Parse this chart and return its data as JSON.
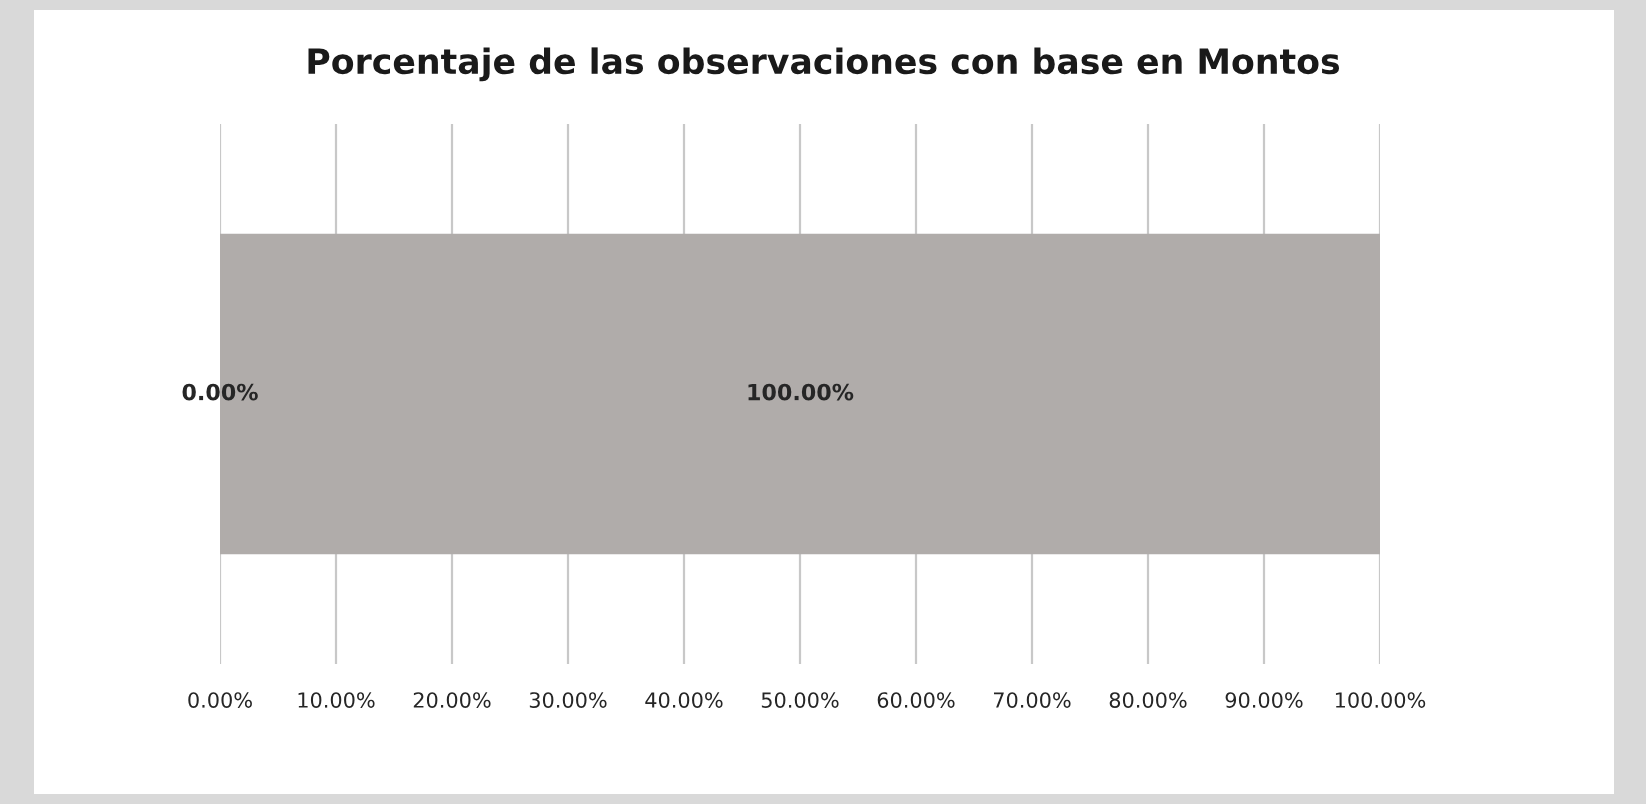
{
  "chart_data": {
    "type": "bar",
    "orientation": "horizontal",
    "stacked": true,
    "title": "Porcentaje de las observaciones con base en Montos",
    "categories": [
      null
    ],
    "series": [
      {
        "color": "#595959",
        "values": [
          0
        ],
        "value_labels": [
          "0.00%"
        ]
      },
      {
        "color": "#b0acaa",
        "values": [
          100
        ],
        "value_labels": [
          "100.00%"
        ]
      }
    ],
    "xlim": [
      0,
      100
    ],
    "xticks": [
      {
        "value": 0,
        "label": "0.00%"
      },
      {
        "value": 10,
        "label": "10.00%"
      },
      {
        "value": 20,
        "label": "20.00%"
      },
      {
        "value": 30,
        "label": "30.00%"
      },
      {
        "value": 40,
        "label": "40.00%"
      },
      {
        "value": 50,
        "label": "50.00%"
      },
      {
        "value": 60,
        "label": "60.00%"
      },
      {
        "value": 70,
        "label": "70.00%"
      },
      {
        "value": 80,
        "label": "80.00%"
      },
      {
        "value": 90,
        "label": "90.00%"
      },
      {
        "value": 100,
        "label": "100.00%"
      }
    ],
    "grid": "x",
    "legend": false,
    "tick_labels": "x"
  }
}
